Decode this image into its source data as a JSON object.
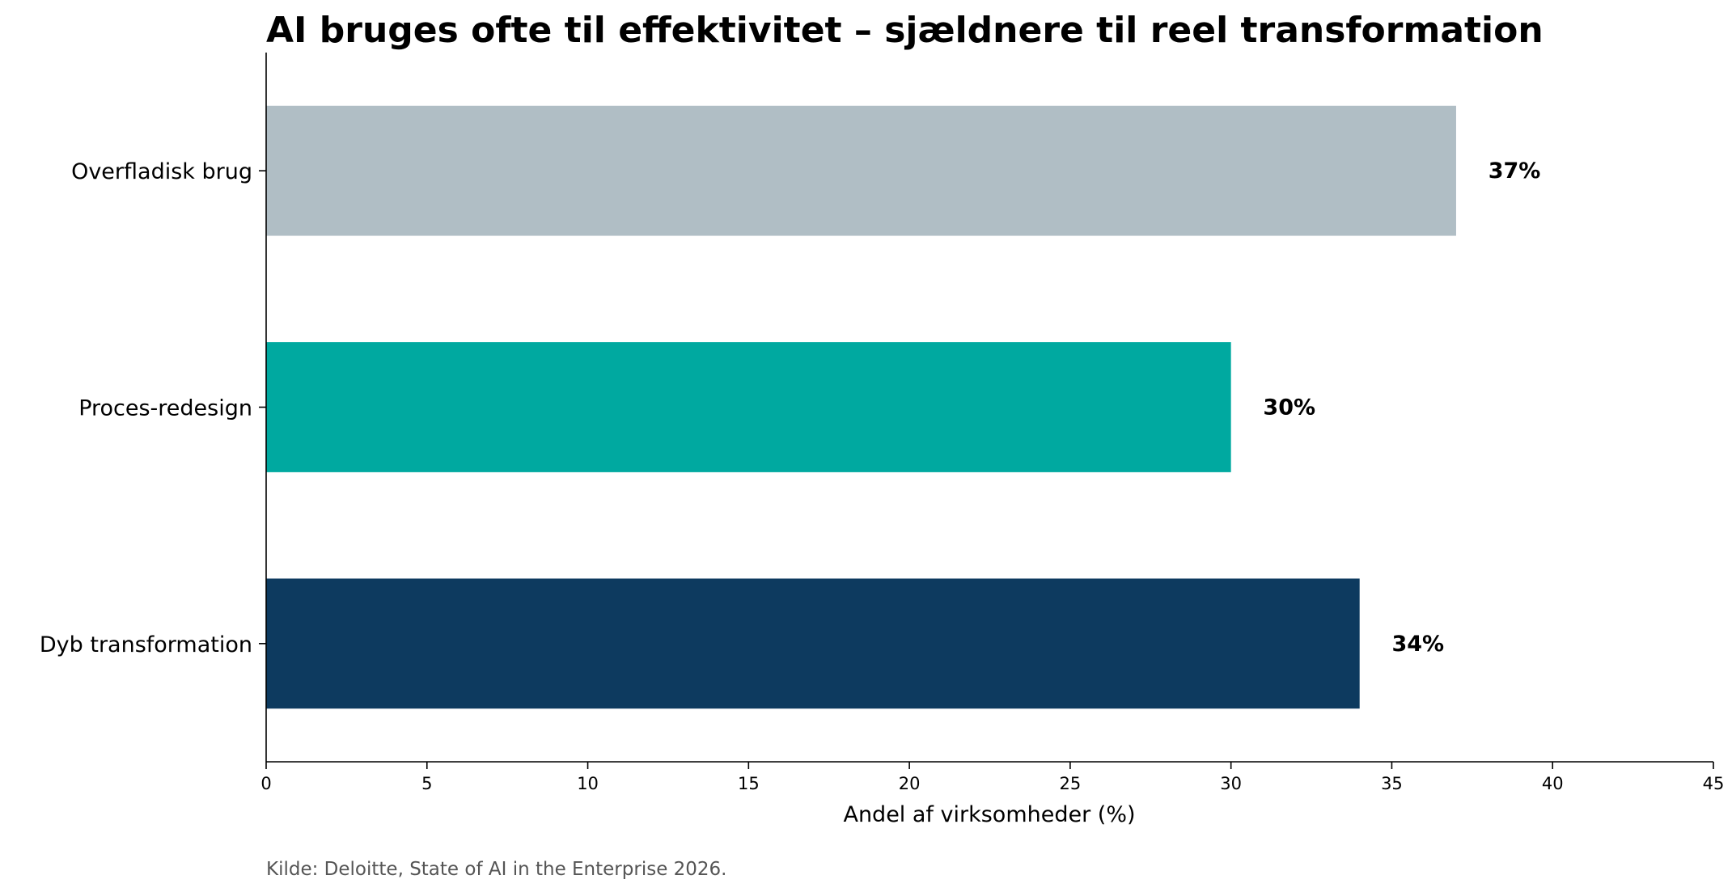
{
  "chart_data": {
    "type": "bar",
    "orientation": "horizontal",
    "title": "AI bruges ofte til effektivitet – sjældnere til reel transformation",
    "xlabel": "Andel af virksomheder (%)",
    "ylabel": "",
    "categories": [
      "Overfladisk brug",
      "Proces-redesign",
      "Dyb transformation"
    ],
    "values": [
      37,
      30,
      34
    ],
    "value_labels": [
      "37%",
      "30%",
      "34%"
    ],
    "colors": [
      "#b0bec5",
      "#00a9a0",
      "#0d3a5f"
    ],
    "xlim": [
      0,
      45
    ],
    "xticks": [
      0,
      5,
      10,
      15,
      20,
      25,
      30,
      35,
      40,
      45
    ],
    "xtick_labels": [
      "0",
      "5",
      "10",
      "15",
      "20",
      "25",
      "30",
      "35",
      "40",
      "45"
    ],
    "grid": false,
    "legend": "none",
    "source": "Kilde: Deloitte, State of AI in the Enterprise 2026."
  }
}
